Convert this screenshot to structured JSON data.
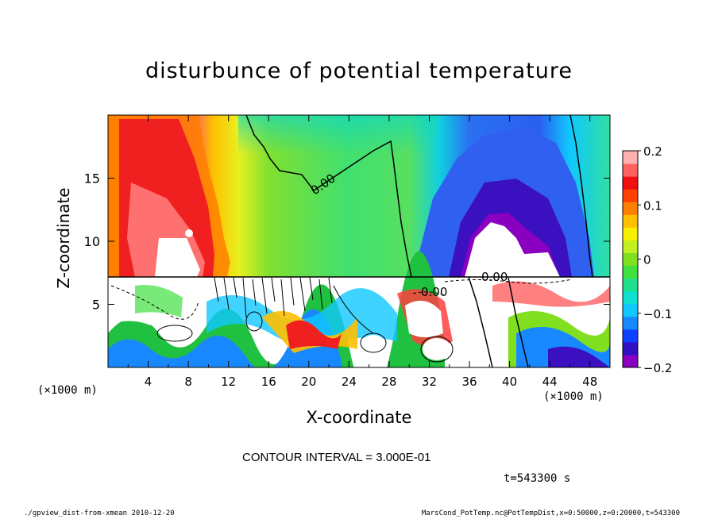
{
  "chart_data": {
    "type": "heatmap",
    "title": "disturbunce of potential temperature",
    "xlabel": "X-coordinate",
    "ylabel": "Z-coordinate",
    "x_unit_left": "(×1000 m)",
    "x_unit_right": "(×1000 m)",
    "xlim": [
      0,
      50
    ],
    "ylim": [
      0,
      20
    ],
    "x_ticks": [
      "4",
      "8",
      "12",
      "16",
      "20",
      "24",
      "28",
      "32",
      "36",
      "40",
      "44",
      "48"
    ],
    "y_ticks": [
      "5",
      "10",
      "15"
    ],
    "contour_labels": [
      "0.00",
      "0.00",
      "0.00"
    ],
    "colorbar": {
      "range": [
        -0.2,
        0.2
      ],
      "tick_labels": [
        "0.2",
        "0.1",
        "0",
        "−0.1",
        "−0.2"
      ],
      "colors": [
        "#8a00c0",
        "#3010c0",
        "#1040ff",
        "#1888ff",
        "#10c8ff",
        "#10e0d0",
        "#20e090",
        "#40e040",
        "#80e020",
        "#c0f020",
        "#f8f000",
        "#ffc000",
        "#ff8000",
        "#ff4000",
        "#f01010",
        "#ff6060",
        "#ffb0b0"
      ]
    },
    "field_colors": {
      "warm_plume": "#ff5a5a",
      "upper_bg": "#58e060",
      "cool_plume": "#2a70f0"
    }
  },
  "contour_interval": "CONTOUR INTERVAL = 3.000E-01",
  "time_label": "t=543300 s",
  "footer_left": "./gpview_dist-from-xmean  2010-12-20",
  "footer_right": "MarsCond_PotTemp.nc@PotTempDist,x=0:50000,z=0:20000,t=543300"
}
